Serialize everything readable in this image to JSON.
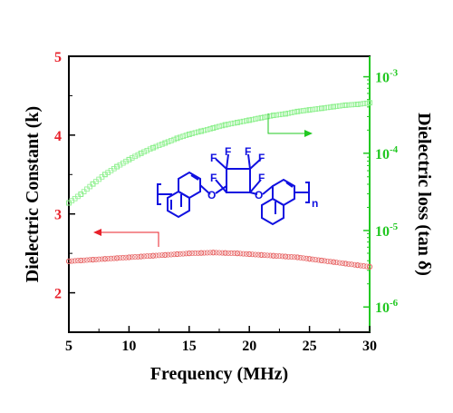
{
  "chart_data": {
    "type": "scatter",
    "xlabel": "Frequency (MHz)",
    "ylabel": "Dielectric Constant (k)",
    "y2label": "Dielectric loss (tan δ)",
    "xlim": [
      5,
      30
    ],
    "ylim": [
      1.5,
      5
    ],
    "y2lim": [
      1.5,
      5
    ],
    "y2scale": "log",
    "x_ticks": [
      "5",
      "10",
      "15",
      "20",
      "25",
      "30"
    ],
    "y_ticks": [
      "2",
      "3",
      "4",
      "5"
    ],
    "y2_ticks": [
      {
        "base": "10",
        "exp": "-6"
      },
      {
        "base": "10",
        "exp": "-5"
      },
      {
        "base": "10",
        "exp": "-4"
      },
      {
        "base": "10",
        "exp": "-3"
      }
    ],
    "grid": false,
    "colors": {
      "left_axis": "#e8202a",
      "right_axis": "#22c822",
      "structure": "#1010e0",
      "frame": "#000000"
    },
    "series": [
      {
        "axis": "left",
        "marker": "open-circle",
        "color": "#e86a6a",
        "x": [
          5,
          6,
          7,
          8,
          9,
          10,
          11,
          12,
          13,
          14,
          15,
          16,
          17,
          18,
          19,
          20,
          21,
          22,
          23,
          24,
          25,
          26,
          27,
          28,
          29,
          30
        ],
        "y": [
          2.4,
          2.41,
          2.42,
          2.43,
          2.44,
          2.45,
          2.46,
          2.47,
          2.48,
          2.49,
          2.5,
          2.505,
          2.51,
          2.505,
          2.5,
          2.49,
          2.48,
          2.47,
          2.46,
          2.45,
          2.43,
          2.41,
          2.39,
          2.37,
          2.35,
          2.33
        ]
      },
      {
        "axis": "right",
        "marker": "open-square",
        "color": "#8cf08c",
        "x": [
          5,
          6,
          7,
          8,
          9,
          10,
          11,
          12,
          13,
          14,
          15,
          16,
          17,
          18,
          19,
          20,
          21,
          22,
          23,
          24,
          25,
          26,
          27,
          28,
          29,
          30
        ],
        "y": [
          3.14,
          3.25,
          3.38,
          3.5,
          3.6,
          3.69,
          3.77,
          3.84,
          3.9,
          3.96,
          4.01,
          4.05,
          4.09,
          4.13,
          4.16,
          4.19,
          4.22,
          4.25,
          4.27,
          4.3,
          4.32,
          4.34,
          4.36,
          4.38,
          4.39,
          4.41
        ]
      }
    ],
    "annotations": [
      {
        "type": "arrow",
        "color": "red",
        "points_to": "left axis"
      },
      {
        "type": "arrow",
        "color": "green",
        "points_to": "right axis"
      }
    ]
  },
  "structure": {
    "atoms": {
      "fluorine": "F",
      "oxygen": "O",
      "repeat": "n"
    }
  }
}
